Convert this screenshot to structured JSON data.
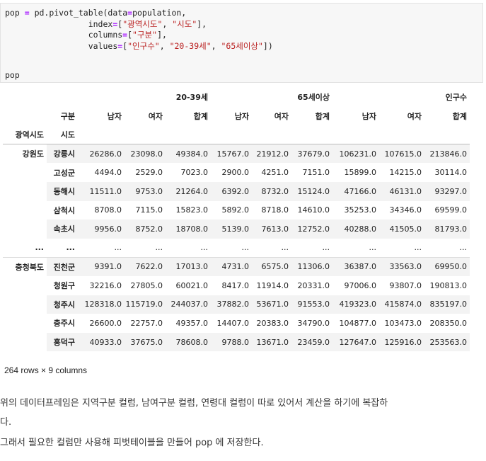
{
  "code_cell": {
    "lines": [
      [
        "pop ",
        "=",
        " pd.pivot_table(data",
        "=",
        "population,"
      ],
      [
        "                 index",
        "=",
        "[",
        "\"광역시도\"",
        ", ",
        "\"시도\"",
        "],"
      ],
      [
        "                 columns",
        "=",
        "[",
        "\"구분\"",
        "],"
      ],
      [
        "                 values",
        "=",
        "[",
        "\"인구수\"",
        ", ",
        "\"20-39세\"",
        ", ",
        "\"65세이상\"",
        "])"
      ]
    ],
    "output_expr": "pop"
  },
  "table": {
    "header_row1": [
      "",
      "",
      "",
      "",
      "20-39세",
      "",
      "",
      "65세이상",
      "",
      "",
      "인구수"
    ],
    "header_row2": [
      "",
      "구분",
      "남자",
      "여자",
      "합계",
      "남자",
      "여자",
      "합계",
      "남자",
      "여자",
      "합계"
    ],
    "header_row3": [
      "광역시도",
      "시도"
    ],
    "rows": [
      {
        "idx1": "강원도",
        "idx2": "강릉시",
        "values": [
          "26286.0",
          "23098.0",
          "49384.0",
          "15767.0",
          "21912.0",
          "37679.0",
          "106231.0",
          "107615.0",
          "213846.0"
        ]
      },
      {
        "idx1": "",
        "idx2": "고성군",
        "values": [
          "4494.0",
          "2529.0",
          "7023.0",
          "2900.0",
          "4251.0",
          "7151.0",
          "15899.0",
          "14215.0",
          "30114.0"
        ]
      },
      {
        "idx1": "",
        "idx2": "동해시",
        "values": [
          "11511.0",
          "9753.0",
          "21264.0",
          "6392.0",
          "8732.0",
          "15124.0",
          "47166.0",
          "46131.0",
          "93297.0"
        ]
      },
      {
        "idx1": "",
        "idx2": "삼척시",
        "values": [
          "8708.0",
          "7115.0",
          "15823.0",
          "5892.0",
          "8718.0",
          "14610.0",
          "35253.0",
          "34346.0",
          "69599.0"
        ]
      },
      {
        "idx1": "",
        "idx2": "속초시",
        "values": [
          "9956.0",
          "8752.0",
          "18708.0",
          "5139.0",
          "7613.0",
          "12752.0",
          "40288.0",
          "41505.0",
          "81793.0"
        ]
      },
      {
        "idx1": "...",
        "idx2": "...",
        "values": [
          "...",
          "...",
          "...",
          "...",
          "...",
          "...",
          "...",
          "...",
          "..."
        ]
      },
      {
        "idx1": "충청북도",
        "idx2": "진천군",
        "values": [
          "9391.0",
          "7622.0",
          "17013.0",
          "4731.0",
          "6575.0",
          "11306.0",
          "36387.0",
          "33563.0",
          "69950.0"
        ]
      },
      {
        "idx1": "",
        "idx2": "청원구",
        "values": [
          "32216.0",
          "27805.0",
          "60021.0",
          "8417.0",
          "11914.0",
          "20331.0",
          "97006.0",
          "93807.0",
          "190813.0"
        ]
      },
      {
        "idx1": "",
        "idx2": "청주시",
        "values": [
          "128318.0",
          "115719.0",
          "244037.0",
          "37882.0",
          "53671.0",
          "91553.0",
          "419323.0",
          "415874.0",
          "835197.0"
        ]
      },
      {
        "idx1": "",
        "idx2": "충주시",
        "values": [
          "26600.0",
          "22757.0",
          "49357.0",
          "14407.0",
          "20383.0",
          "34790.0",
          "104877.0",
          "103473.0",
          "208350.0"
        ]
      },
      {
        "idx1": "",
        "idx2": "흥덕구",
        "values": [
          "40933.0",
          "37675.0",
          "78608.0",
          "9788.0",
          "13671.0",
          "23459.0",
          "127647.0",
          "125916.0",
          "253563.0"
        ]
      }
    ]
  },
  "shape_text": "264 rows × 9 columns",
  "paragraph1_line1": "위의 데이터프레임은 지역구분 컬럼, 남여구분 컬럼, 연령대 컬럼이 따로 있어서 계산을 하기에 복잡하",
  "paragraph1_line2": "다.",
  "paragraph2": "그래서 필요한 컬럼만 사용해 피벗테이블을 만들어 pop 에 저장한다."
}
